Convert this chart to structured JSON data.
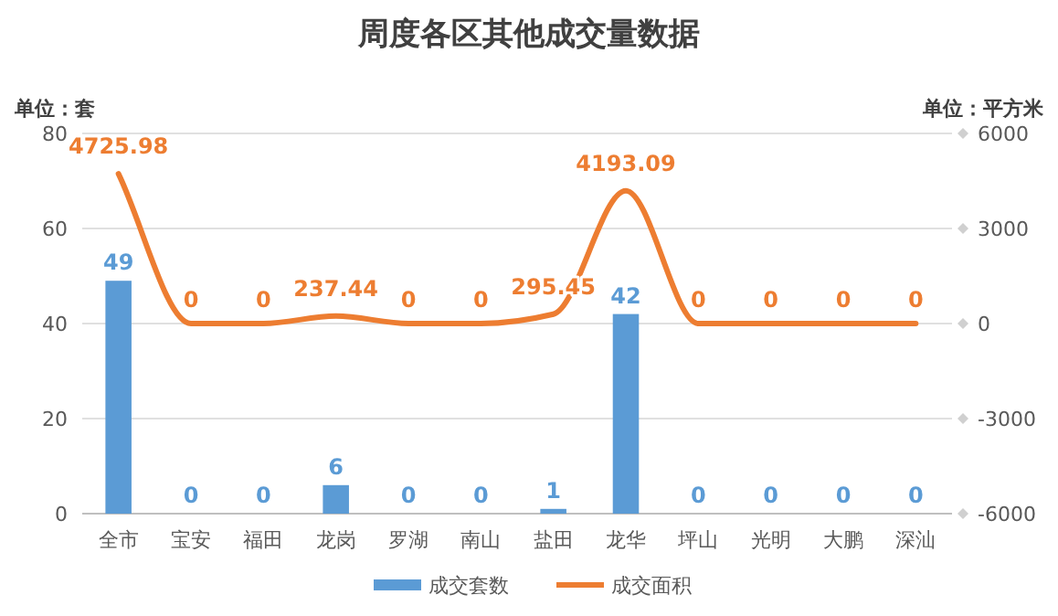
{
  "chart_data": {
    "type": "bar",
    "title": "周度各区其他成交量数据",
    "ylabel": "单位：套",
    "y2label": "单位：平方米",
    "categories": [
      "全市",
      "宝安",
      "福田",
      "龙岗",
      "罗湖",
      "南山",
      "盐田",
      "龙华",
      "坪山",
      "光明",
      "大鹏",
      "深汕"
    ],
    "series": [
      {
        "name": "成交套数",
        "color": "#5b9bd5",
        "values": [
          49,
          0,
          0,
          6,
          0,
          0,
          1,
          42,
          0,
          0,
          0,
          0
        ]
      },
      {
        "name": "成交面积",
        "type": "line",
        "axis": "y2",
        "color": "#ed7d31",
        "values": [
          4725.98,
          0,
          0,
          237.44,
          0,
          0,
          295.45,
          4193.09,
          0,
          0,
          0,
          0
        ]
      }
    ],
    "ylim": [
      0,
      80
    ],
    "yticks": [
      0,
      20,
      40,
      60,
      80
    ],
    "y2lim": [
      -6000,
      6000
    ],
    "y2ticks": [
      -6000,
      -3000,
      0,
      3000,
      6000
    ],
    "grid": "y",
    "legend": "bottom",
    "data_labels": true,
    "marker": "none"
  }
}
